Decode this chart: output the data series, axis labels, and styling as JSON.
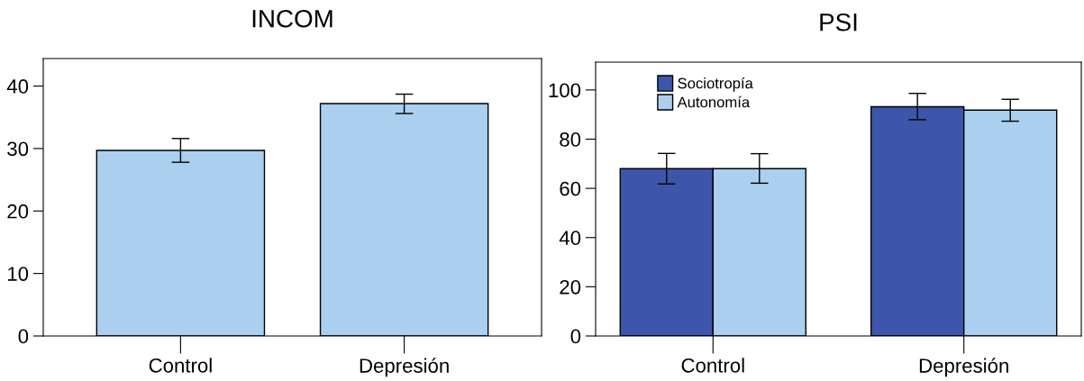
{
  "chart_data": [
    {
      "type": "bar",
      "title": "INCOM",
      "categories": [
        "Control",
        "Depresión"
      ],
      "series": [
        {
          "color": "#abcfee",
          "values": [
            29.7,
            37.2
          ],
          "errors": [
            [
              27.8,
              31.6
            ],
            [
              35.6,
              38.7
            ]
          ]
        }
      ],
      "ylim": [
        0,
        44.4
      ],
      "yticks": [
        0,
        10,
        20,
        30,
        40
      ],
      "grid": false,
      "legend": false
    },
    {
      "type": "bar",
      "title": "PSI",
      "categories": [
        "Control",
        "Depresión"
      ],
      "series": [
        {
          "name": "Sociotropía",
          "color": "#3d56ab",
          "values": [
            68.0,
            93.2
          ],
          "errors": [
            [
              61.8,
              74.2
            ],
            [
              87.9,
              98.6
            ]
          ]
        },
        {
          "name": "Autonomía",
          "color": "#abcfee",
          "values": [
            68.0,
            91.8
          ],
          "errors": [
            [
              62.1,
              74.1
            ],
            [
              87.3,
              96.2
            ]
          ]
        }
      ],
      "ylim": [
        0,
        111.3
      ],
      "yticks": [
        0,
        20,
        40,
        60,
        80,
        100
      ],
      "grid": false,
      "legend": "top left"
    }
  ]
}
